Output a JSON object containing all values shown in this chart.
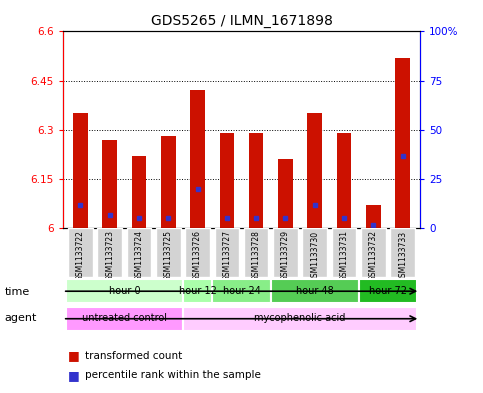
{
  "title": "GDS5265 / ILMN_1671898",
  "samples": [
    "GSM1133722",
    "GSM1133723",
    "GSM1133724",
    "GSM1133725",
    "GSM1133726",
    "GSM1133727",
    "GSM1133728",
    "GSM1133729",
    "GSM1133730",
    "GSM1133731",
    "GSM1133732",
    "GSM1133733"
  ],
  "red_values": [
    6.35,
    6.27,
    6.22,
    6.28,
    6.42,
    6.29,
    6.29,
    6.21,
    6.35,
    6.29,
    6.07,
    6.52
  ],
  "blue_values": [
    6.07,
    6.04,
    6.03,
    6.03,
    6.12,
    6.03,
    6.03,
    6.03,
    6.07,
    6.03,
    6.01,
    6.22
  ],
  "ylim_left": [
    6.0,
    6.6
  ],
  "ylim_right": [
    0,
    100
  ],
  "yticks_left": [
    6.0,
    6.15,
    6.3,
    6.45,
    6.6
  ],
  "yticks_right": [
    0,
    25,
    50,
    75,
    100
  ],
  "ytick_labels_left": [
    "6",
    "6.15",
    "6.3",
    "6.45",
    "6.6"
  ],
  "ytick_labels_right": [
    "0",
    "25",
    "50",
    "75",
    "100%"
  ],
  "time_groups": [
    {
      "label": "hour 0",
      "start": 0,
      "end": 4,
      "color": "#ccffcc"
    },
    {
      "label": "hour 12",
      "start": 4,
      "end": 5,
      "color": "#aaffaa"
    },
    {
      "label": "hour 24",
      "start": 5,
      "end": 7,
      "color": "#88ee88"
    },
    {
      "label": "hour 48",
      "start": 7,
      "end": 10,
      "color": "#55cc55"
    },
    {
      "label": "hour 72",
      "start": 10,
      "end": 12,
      "color": "#22bb22"
    }
  ],
  "agent_groups": [
    {
      "label": "untreated control",
      "start": 0,
      "end": 4,
      "color": "#ff99ff"
    },
    {
      "label": "mycophenolic acid",
      "start": 4,
      "end": 12,
      "color": "#ffccff"
    }
  ],
  "legend_red": "transformed count",
  "legend_blue": "percentile rank within the sample",
  "bar_color": "#cc1100",
  "blue_color": "#3333cc",
  "bar_width": 0.5
}
